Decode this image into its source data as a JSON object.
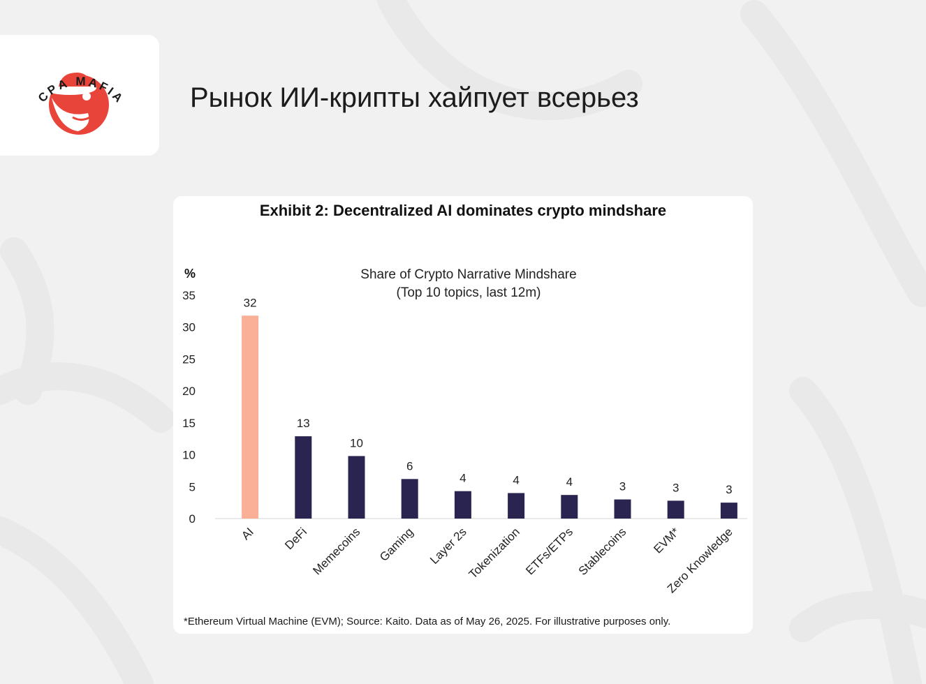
{
  "header": {
    "logo_text": "CPA MAFIA",
    "title": "Рынок ИИ-крипты хайпует всерьез"
  },
  "colors": {
    "background": "#f1f1f1",
    "brand_red": "#e8443a",
    "highlight_bar": "#f9b096",
    "default_bar": "#2a2450"
  },
  "exhibit": {
    "title": "Exhibit 2: Decentralized AI dominates crypto mindshare",
    "footnote": "*Ethereum Virtual Machine (EVM); Source: Kaito. Data as of May 26, 2025. For illustrative purposes only."
  },
  "chart_data": {
    "type": "bar",
    "title": "Share of Crypto Narrative Mindshare",
    "subtitle": "(Top 10 topics, last 12m)",
    "ylabel": "%",
    "ylim": [
      0,
      35
    ],
    "yticks": [
      0,
      5,
      10,
      15,
      20,
      25,
      30,
      35
    ],
    "grid": false,
    "categories": [
      "AI",
      "DeFi",
      "Memecoins",
      "Gaming",
      "Layer 2s",
      "Tokenization",
      "ETFs/ETPs",
      "Stablecoins",
      "EVM*",
      "Zero Knowledge"
    ],
    "values": [
      31.8,
      12.9,
      9.8,
      6.2,
      4.3,
      4.0,
      3.7,
      3.0,
      2.8,
      2.5
    ],
    "data_labels": [
      "32",
      "13",
      "10",
      "6",
      "4",
      "4",
      "4",
      "3",
      "3",
      "3"
    ],
    "highlighted_category": "AI"
  }
}
